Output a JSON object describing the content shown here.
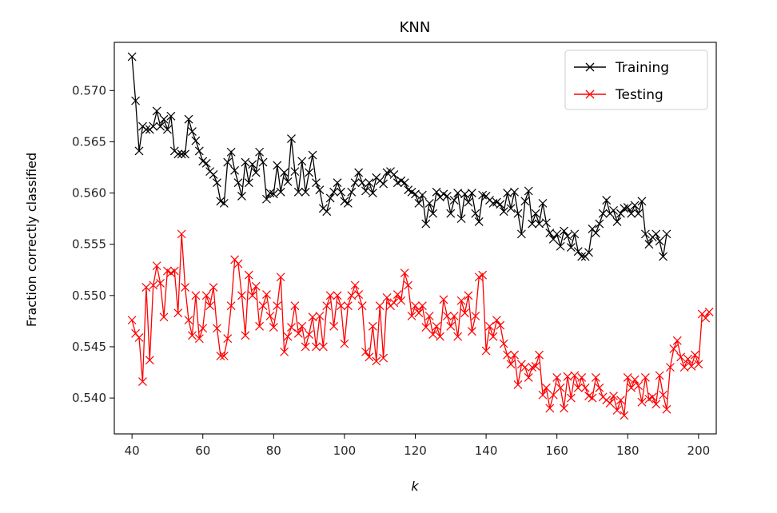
{
  "chart_data": {
    "type": "line",
    "title": "KNN",
    "xlabel": "k",
    "ylabel": "Fraction correctly classified",
    "xlim": [
      35,
      205
    ],
    "ylim": [
      0.5365,
      0.5747
    ],
    "xticks": [
      40,
      60,
      80,
      100,
      120,
      140,
      160,
      180,
      200
    ],
    "yticks": [
      0.54,
      0.545,
      0.55,
      0.555,
      0.56,
      0.565,
      0.57
    ],
    "ytick_labels": [
      "0.540",
      "0.545",
      "0.550",
      "0.555",
      "0.560",
      "0.565",
      "0.570"
    ],
    "grid": false,
    "legend_position": "top-right",
    "marker": "x",
    "x_start": 40,
    "x_step": 1,
    "series": [
      {
        "name": "Training",
        "color": "#000000",
        "values": [
          0.5733,
          0.569,
          0.5641,
          0.5665,
          0.5662,
          0.5662,
          0.5665,
          0.568,
          0.5665,
          0.5672,
          0.5662,
          0.5675,
          0.5641,
          0.5638,
          0.5638,
          0.5638,
          0.5672,
          0.566,
          0.5651,
          0.5641,
          0.5631,
          0.5629,
          0.5621,
          0.5618,
          0.561,
          0.5592,
          0.559,
          0.563,
          0.564,
          0.5622,
          0.561,
          0.5597,
          0.563,
          0.561,
          0.5628,
          0.562,
          0.564,
          0.563,
          0.5594,
          0.56,
          0.5599,
          0.5627,
          0.5601,
          0.562,
          0.5611,
          0.5653,
          0.5621,
          0.5601,
          0.5631,
          0.5601,
          0.562,
          0.5637,
          0.561,
          0.5603,
          0.5585,
          0.5582,
          0.5595,
          0.5601,
          0.561,
          0.5601,
          0.5592,
          0.559,
          0.5601,
          0.561,
          0.562,
          0.561,
          0.5602,
          0.561,
          0.56,
          0.5615,
          0.5612,
          0.5609,
          0.562,
          0.5621,
          0.5618,
          0.561,
          0.5612,
          0.561,
          0.5603,
          0.5601,
          0.5599,
          0.559,
          0.5598,
          0.557,
          0.559,
          0.558,
          0.5601,
          0.5596,
          0.5599,
          0.5597,
          0.558,
          0.5593,
          0.56,
          0.5575,
          0.5599,
          0.5591,
          0.56,
          0.558,
          0.5572,
          0.5598,
          0.5597,
          0.5593,
          0.559,
          0.5591,
          0.5589,
          0.5582,
          0.56,
          0.5585,
          0.5601,
          0.558,
          0.556,
          0.5592,
          0.5602,
          0.557,
          0.558,
          0.557,
          0.559,
          0.5571,
          0.5561,
          0.5555,
          0.556,
          0.5548,
          0.5563,
          0.5558,
          0.5547,
          0.556,
          0.5543,
          0.5538,
          0.5538,
          0.5542,
          0.5565,
          0.5561,
          0.557,
          0.558,
          0.5593,
          0.558,
          0.5583,
          0.5572,
          0.558,
          0.5585,
          0.5586,
          0.558,
          0.5588,
          0.558,
          0.5592,
          0.556,
          0.555,
          0.5557,
          0.556,
          0.5553,
          0.5538,
          0.556
        ]
      },
      {
        "name": "Testing",
        "color": "#ff0000",
        "values": [
          0.5476,
          0.5463,
          0.5459,
          0.5416,
          0.5508,
          0.5437,
          0.551,
          0.5529,
          0.5512,
          0.5479,
          0.5524,
          0.5522,
          0.5524,
          0.5483,
          0.556,
          0.5508,
          0.5476,
          0.5461,
          0.55,
          0.5458,
          0.5468,
          0.55,
          0.549,
          0.5508,
          0.5468,
          0.5441,
          0.5441,
          0.5458,
          0.549,
          0.5535,
          0.5531,
          0.55,
          0.5461,
          0.552,
          0.55,
          0.5509,
          0.547,
          0.549,
          0.5501,
          0.548,
          0.5469,
          0.549,
          0.5518,
          0.5445,
          0.546,
          0.5469,
          0.549,
          0.5463,
          0.547,
          0.545,
          0.5462,
          0.5479,
          0.545,
          0.548,
          0.545,
          0.549,
          0.55,
          0.547,
          0.55,
          0.549,
          0.5453,
          0.549,
          0.55,
          0.551,
          0.5501,
          0.549,
          0.5445,
          0.544,
          0.547,
          0.5436,
          0.549,
          0.5439,
          0.5498,
          0.549,
          0.5493,
          0.5501,
          0.5495,
          0.5522,
          0.551,
          0.548,
          0.549,
          0.5483,
          0.549,
          0.5469,
          0.548,
          0.5462,
          0.547,
          0.546,
          0.5496,
          0.548,
          0.547,
          0.548,
          0.546,
          0.5495,
          0.5483,
          0.55,
          0.5465,
          0.548,
          0.5518,
          0.552,
          0.5446,
          0.547,
          0.546,
          0.5476,
          0.5471,
          0.5453,
          0.5442,
          0.5433,
          0.5442,
          0.5413,
          0.5433,
          0.543,
          0.542,
          0.543,
          0.5431,
          0.5442,
          0.5403,
          0.541,
          0.539,
          0.5403,
          0.542,
          0.541,
          0.539,
          0.5421,
          0.54,
          0.5422,
          0.541,
          0.542,
          0.541,
          0.5402,
          0.54,
          0.542,
          0.541,
          0.5401,
          0.5398,
          0.5395,
          0.5402,
          0.5388,
          0.5398,
          0.5383,
          0.542,
          0.541,
          0.5418,
          0.5412,
          0.5396,
          0.542,
          0.5399,
          0.5401,
          0.5394,
          0.5422,
          0.5403,
          0.5389,
          0.543,
          0.5448,
          0.5456,
          0.544,
          0.543,
          0.5438,
          0.5431,
          0.5442,
          0.5433,
          0.5482,
          0.5478,
          0.5484
        ]
      }
    ]
  }
}
